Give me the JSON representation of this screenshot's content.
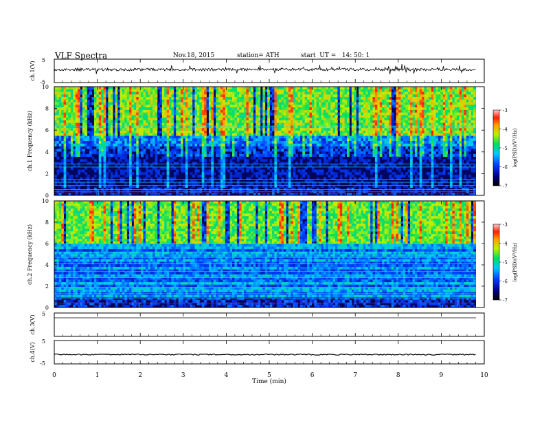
{
  "header": {
    "title": "VLF Spectra",
    "date": "Nov.18, 2015",
    "station": "station= ATH",
    "start": "start  UT =   14: 50: 1"
  },
  "chart_data": [
    {
      "type": "line",
      "panel": "ch1-waveform",
      "ylabel": "ch.1(V)",
      "ylim": [
        -5,
        5
      ],
      "yticks": [
        "5",
        "-5"
      ],
      "description_free": true,
      "series_color": "#000000"
    },
    {
      "type": "heatmap",
      "panel": "ch1-spectrogram",
      "ylabel": "ch.1 Frequency  (kHz)",
      "ylim": [
        0,
        10
      ],
      "yticks": [
        "0",
        "2",
        "4",
        "6",
        "8",
        "10"
      ],
      "colorbar": {
        "label": "log(PSD)(V²/Hz)",
        "range": [
          -7,
          -3
        ],
        "ticks": [
          "-3",
          "-4",
          "-5",
          "-6",
          "-7"
        ]
      }
    },
    {
      "type": "heatmap",
      "panel": "ch2-spectrogram",
      "ylabel": "ch.2 Frequency  (kHz)",
      "ylim": [
        0,
        10
      ],
      "yticks": [
        "0",
        "2",
        "4",
        "6",
        "8",
        "10"
      ],
      "colorbar": {
        "label": "log(PSD)(V²/Hz)",
        "range": [
          -7,
          -3
        ],
        "ticks": [
          "-3",
          "-4",
          "-5",
          "-6",
          "-7"
        ]
      }
    },
    {
      "type": "line",
      "panel": "ch3-waveform",
      "ylabel": "ch.3(V)",
      "ylim": [
        -5,
        5
      ],
      "yticks": [
        "5"
      ],
      "level": 0
    },
    {
      "type": "line",
      "panel": "ch4-waveform",
      "ylabel": "ch.4(V)",
      "ylim": [
        -5,
        5
      ],
      "yticks": [
        "5",
        "-5"
      ],
      "level": -1
    }
  ],
  "xaxis": {
    "label": "Time  (min)",
    "xlim": [
      0,
      10
    ],
    "ticks": [
      "0",
      "1",
      "2",
      "3",
      "4",
      "5",
      "6",
      "7",
      "8",
      "9",
      "10"
    ],
    "data_end": 9.8
  },
  "colors": {
    "background_low": "#000000",
    "low": "#000a8c",
    "mid": "#1fd6e6",
    "high": "#c8f020",
    "peak": "#e82010"
  }
}
